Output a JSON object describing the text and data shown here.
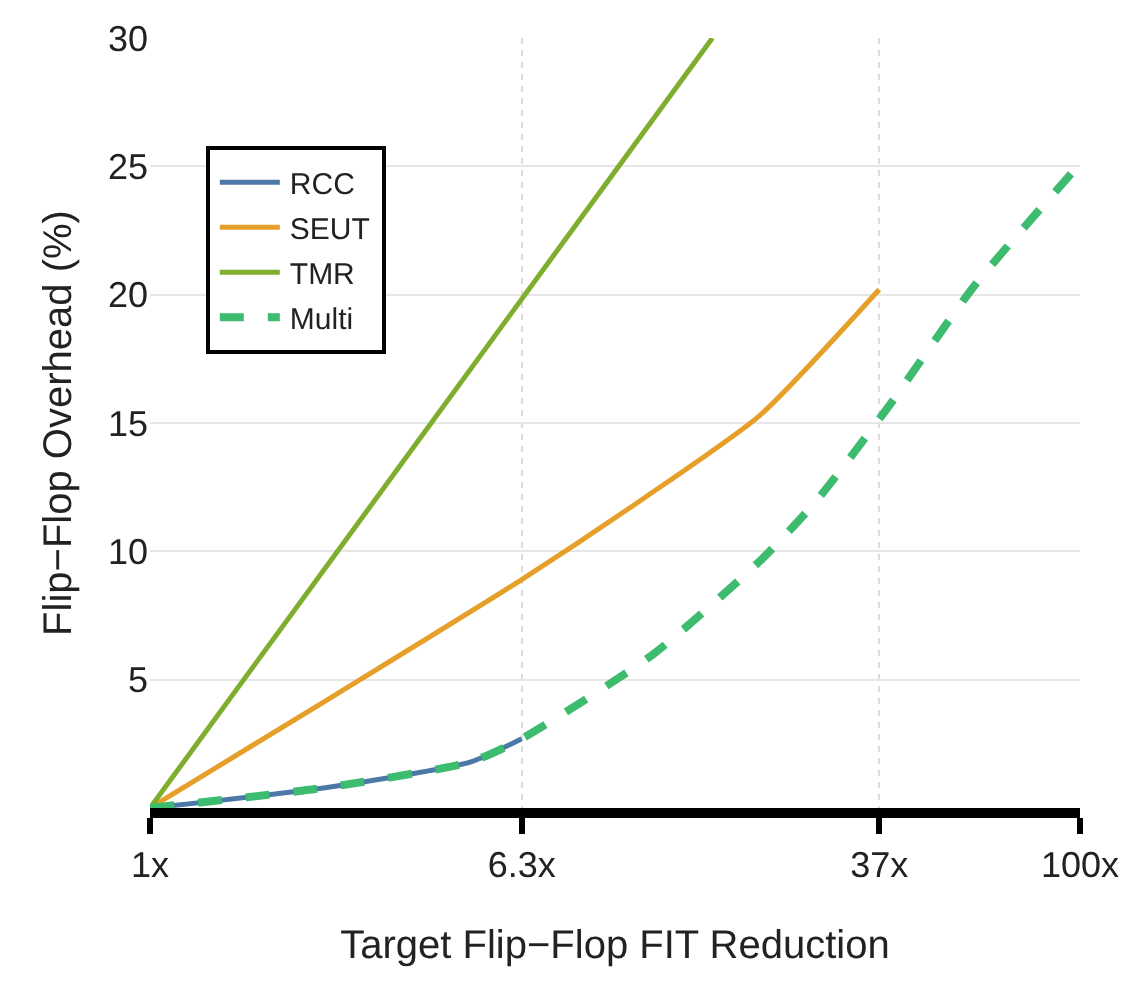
{
  "chart_data": {
    "type": "line",
    "xlabel": "Target Flip−Flop FIT Reduction",
    "ylabel": "Flip−Flop Overhead (%)",
    "log": "x",
    "xlim": [
      1,
      100
    ],
    "xticks": [
      {
        "value": 1,
        "label": "1x"
      },
      {
        "value": 6.3,
        "label": "6.3x"
      },
      {
        "value": 37,
        "label": "37x"
      },
      {
        "value": 100,
        "label": "100x"
      }
    ],
    "ylim": [
      0,
      30
    ],
    "yticks": [
      5,
      10,
      15,
      20,
      25,
      30
    ],
    "grid": true,
    "legend": "top left",
    "marker": "none",
    "series": [
      {
        "name": "RCC",
        "color": "#4c78a8",
        "x": [
          1,
          2.4,
          4.9,
          6.3
        ],
        "values": [
          0,
          0.8,
          1.8,
          2.7
        ],
        "line_style": "solid"
      },
      {
        "name": "SEUT",
        "color": "#e69f28",
        "x": [
          1,
          2.5,
          6.3,
          11.6,
          20.5,
          37
        ],
        "values": [
          0,
          4.4,
          8.9,
          12.1,
          15.3,
          20.2
        ],
        "line_style": "solid"
      },
      {
        "name": "TMR",
        "color": "#7fae2e",
        "x": [
          1,
          16.2
        ],
        "values": [
          0,
          30
        ],
        "line_style": "solid"
      },
      {
        "name": "Multi",
        "color": "#3dbb6e",
        "x": [
          1,
          2.4,
          4.9,
          6.3,
          12.1,
          20.7,
          27.2,
          38.6,
          59,
          100
        ],
        "values": [
          0,
          0.8,
          1.8,
          2.7,
          6.0,
          9.7,
          12.0,
          15.6,
          20.3,
          25.1
        ],
        "line_style": "dashed"
      }
    ]
  }
}
